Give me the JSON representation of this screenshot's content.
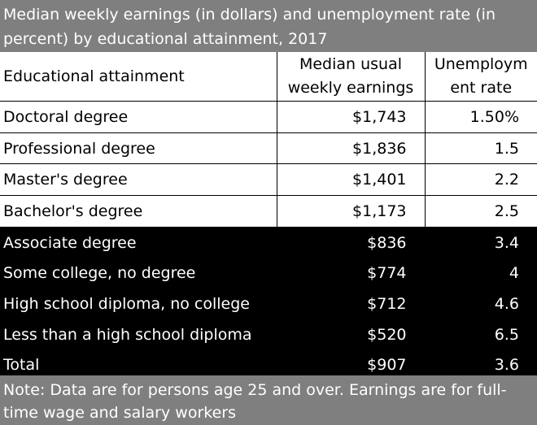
{
  "title_lines": [
    "Median weekly earnings (in dollars) and unemployment rate (in",
    "percent) by educational attainment, 2017"
  ],
  "headers": {
    "attainment": "Educational attainment",
    "earnings": "Median usual weekly earnings",
    "rate": "Unemploym ent rate"
  },
  "rows": [
    {
      "label": "Doctoral degree",
      "earnings": "$1,743",
      "rate": "1.50%"
    },
    {
      "label": "Professional degree",
      "earnings": "$1,836",
      "rate": "1.5"
    },
    {
      "label": "Master's degree",
      "earnings": "$1,401",
      "rate": "2.2"
    },
    {
      "label": "Bachelor's degree",
      "earnings": "$1,173",
      "rate": "2.5"
    },
    {
      "label": "Associate degree",
      "earnings": "$836",
      "rate": "3.4"
    },
    {
      "label": "Some college, no degree",
      "earnings": "$774",
      "rate": "4"
    },
    {
      "label": "High school diploma, no college",
      "earnings": "$712",
      "rate": "4.6"
    },
    {
      "label": "Less than a high school diploma",
      "earnings": "$520",
      "rate": "6.5"
    },
    {
      "label": "Total",
      "earnings": "$907",
      "rate": "3.6"
    }
  ],
  "note_lines": [
    "Note: Data are for persons age 25 and over. Earnings are for full-",
    "time wage and salary workers"
  ],
  "colors": {
    "title_bg": "#7f7f7f",
    "light_row_bg": "#ffffff",
    "dark_row_bg": "#000000"
  },
  "chart_data": {
    "type": "table",
    "title": "Median weekly earnings (in dollars) and unemployment rate (in percent) by educational attainment, 2017",
    "columns": [
      "Educational attainment",
      "Median usual weekly earnings",
      "Unemployment rate"
    ],
    "categories": [
      "Doctoral degree",
      "Professional degree",
      "Master's degree",
      "Bachelor's degree",
      "Associate degree",
      "Some college, no degree",
      "High school diploma, no college",
      "Less than a high school diploma",
      "Total"
    ],
    "series": [
      {
        "name": "Median usual weekly earnings",
        "values": [
          1743,
          1836,
          1401,
          1173,
          836,
          774,
          712,
          520,
          907
        ]
      },
      {
        "name": "Unemployment rate",
        "values": [
          1.5,
          1.5,
          2.2,
          2.5,
          3.4,
          4,
          4.6,
          6.5,
          3.6
        ]
      }
    ],
    "highlighted_light_rows": 4
  }
}
